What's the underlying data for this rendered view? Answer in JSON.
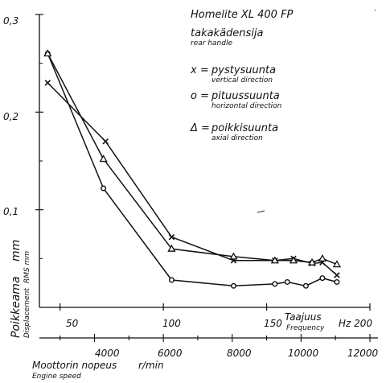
{
  "chart_data": {
    "type": "line",
    "title": "Homelite XL 400 FP",
    "subtitle": "takakädensija",
    "subtitle_en": "rear handle",
    "ylim": [
      0,
      0.3
    ],
    "xlim": [
      40,
      200
    ],
    "yticks": [
      "0,3",
      "0,2",
      "0,1"
    ],
    "yticks_values": [
      0.3,
      0.2,
      0.1
    ],
    "xticks_hz": [
      "50",
      "100",
      "150",
      "Hz 200"
    ],
    "xticks_hz_values": [
      50,
      100,
      150,
      200
    ],
    "xlabel_hz": "Taajuus",
    "xlabel_hz_en": "Frequency",
    "xticks_rpm": [
      "4000",
      "6000",
      "8000",
      "10000",
      "12000"
    ],
    "xticks_rpm_values": [
      4000,
      6000,
      8000,
      10000,
      12000
    ],
    "xlabel_rpm": "Moottorin nopeus",
    "xlabel_rpm_unit": "r/min",
    "xlabel_rpm_en": "Engine speed",
    "ylabel": "Poikkeama",
    "ylabel_unit": "mm",
    "ylabel_en": "Displacement",
    "ylabel_en_unit": "RMS mm",
    "legend_position": "top-right",
    "series": [
      {
        "marker": "x",
        "name": "pystysuunta",
        "name_en": "vertical direction",
        "legend_prefix": "x =",
        "x": [
          44,
          72,
          104,
          134,
          154,
          163,
          172,
          177,
          184
        ],
        "values": [
          0.23,
          0.17,
          0.072,
          0.048,
          0.048,
          0.05,
          0.045,
          0.046,
          0.033
        ]
      },
      {
        "marker": "o",
        "name": "pituussuunta",
        "name_en": "horizontal direction",
        "legend_prefix": "o =",
        "x": [
          44,
          71,
          104,
          134,
          154,
          160,
          169,
          177,
          184
        ],
        "values": [
          0.26,
          0.122,
          0.028,
          0.022,
          0.024,
          0.026,
          0.022,
          0.03,
          0.026
        ]
      },
      {
        "marker": "triangle",
        "name": "poikkisuunta",
        "name_en": "axial direction",
        "legend_prefix": "Δ =",
        "x": [
          44,
          71,
          104,
          134,
          154,
          163,
          172,
          177,
          184
        ],
        "values": [
          0.26,
          0.152,
          0.06,
          0.052,
          0.048,
          0.048,
          0.046,
          0.05,
          0.044
        ]
      }
    ]
  }
}
